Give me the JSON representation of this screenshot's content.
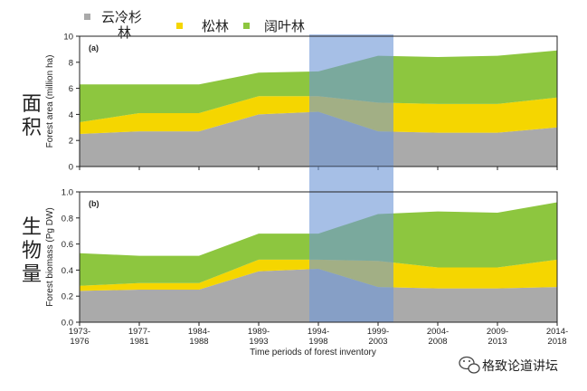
{
  "colors": {
    "conifer_spruce_fir": "#aaaaaa",
    "pine": "#f5d600",
    "broadleaf": "#8dc63f",
    "highlight": "#6f97d6"
  },
  "legend": [
    {
      "label": "云冷杉林",
      "color": "#aaaaaa"
    },
    {
      "label": "松林",
      "color": "#f5d600"
    },
    {
      "label": "阔叶林",
      "color": "#8dc63f"
    }
  ],
  "side_labels": {
    "area": "面积",
    "biomass": "生物量"
  },
  "chart_data": [
    {
      "type": "area",
      "stacked": true,
      "panel_label": "(a)",
      "title": "",
      "xlabel": "",
      "ylabel": "Forest area (million ha)",
      "ylim": [
        0,
        10
      ],
      "yticks": [
        "0",
        "2",
        "4",
        "6",
        "8",
        "10"
      ],
      "categories": [
        "1973–1976",
        "1977–1981",
        "1984–1988",
        "1989–1993",
        "1994–1998",
        "1999–2003",
        "2004–2008",
        "2009–2013",
        "2014–2018"
      ],
      "highlight_range": [
        "1994–1998",
        "1999–2003"
      ],
      "series": [
        {
          "name": "云冷杉林",
          "values": [
            2.5,
            2.7,
            2.7,
            4.0,
            4.2,
            2.7,
            2.6,
            2.6,
            3.0
          ]
        },
        {
          "name": "松林",
          "values": [
            0.9,
            1.4,
            1.4,
            1.4,
            1.2,
            2.2,
            2.2,
            2.2,
            2.3
          ]
        },
        {
          "name": "阔叶林",
          "values": [
            2.9,
            2.2,
            2.2,
            1.8,
            1.9,
            3.6,
            3.6,
            3.7,
            3.6
          ]
        }
      ]
    },
    {
      "type": "area",
      "stacked": true,
      "panel_label": "(b)",
      "title": "",
      "xlabel": "Time periods of forest inventory",
      "ylabel": "Forest biomass (Pg DW)",
      "ylim": [
        0,
        1.0
      ],
      "yticks": [
        "0.0",
        "0.2",
        "0.4",
        "0.6",
        "0.8",
        "1.0"
      ],
      "categories": [
        "1973–1976",
        "1977–1981",
        "1984–1988",
        "1989–1993",
        "1994–1998",
        "1999–2003",
        "2004–2008",
        "2009–2013",
        "2014–2018"
      ],
      "highlight_range": [
        "1994–1998",
        "1999–2003"
      ],
      "series": [
        {
          "name": "云冷杉林",
          "values": [
            0.24,
            0.25,
            0.25,
            0.39,
            0.41,
            0.27,
            0.26,
            0.26,
            0.27
          ]
        },
        {
          "name": "松林",
          "values": [
            0.04,
            0.05,
            0.05,
            0.09,
            0.07,
            0.2,
            0.16,
            0.16,
            0.21
          ]
        },
        {
          "name": "阔叶林",
          "values": [
            0.25,
            0.21,
            0.21,
            0.2,
            0.2,
            0.36,
            0.43,
            0.42,
            0.44
          ]
        }
      ]
    }
  ],
  "x_ticks": [
    {
      "line1": "1973-",
      "line2": "1976"
    },
    {
      "line1": "1977-",
      "line2": "1981"
    },
    {
      "line1": "1984-",
      "line2": "1988"
    },
    {
      "line1": "1989-",
      "line2": "1993"
    },
    {
      "line1": "1994-",
      "line2": "1998"
    },
    {
      "line1": "1999-",
      "line2": "2003"
    },
    {
      "line1": "2004-",
      "line2": "2008"
    },
    {
      "line1": "2009-",
      "line2": "2013"
    },
    {
      "line1": "2014-",
      "line2": "2018"
    }
  ],
  "watermark": "格致论道讲坛"
}
